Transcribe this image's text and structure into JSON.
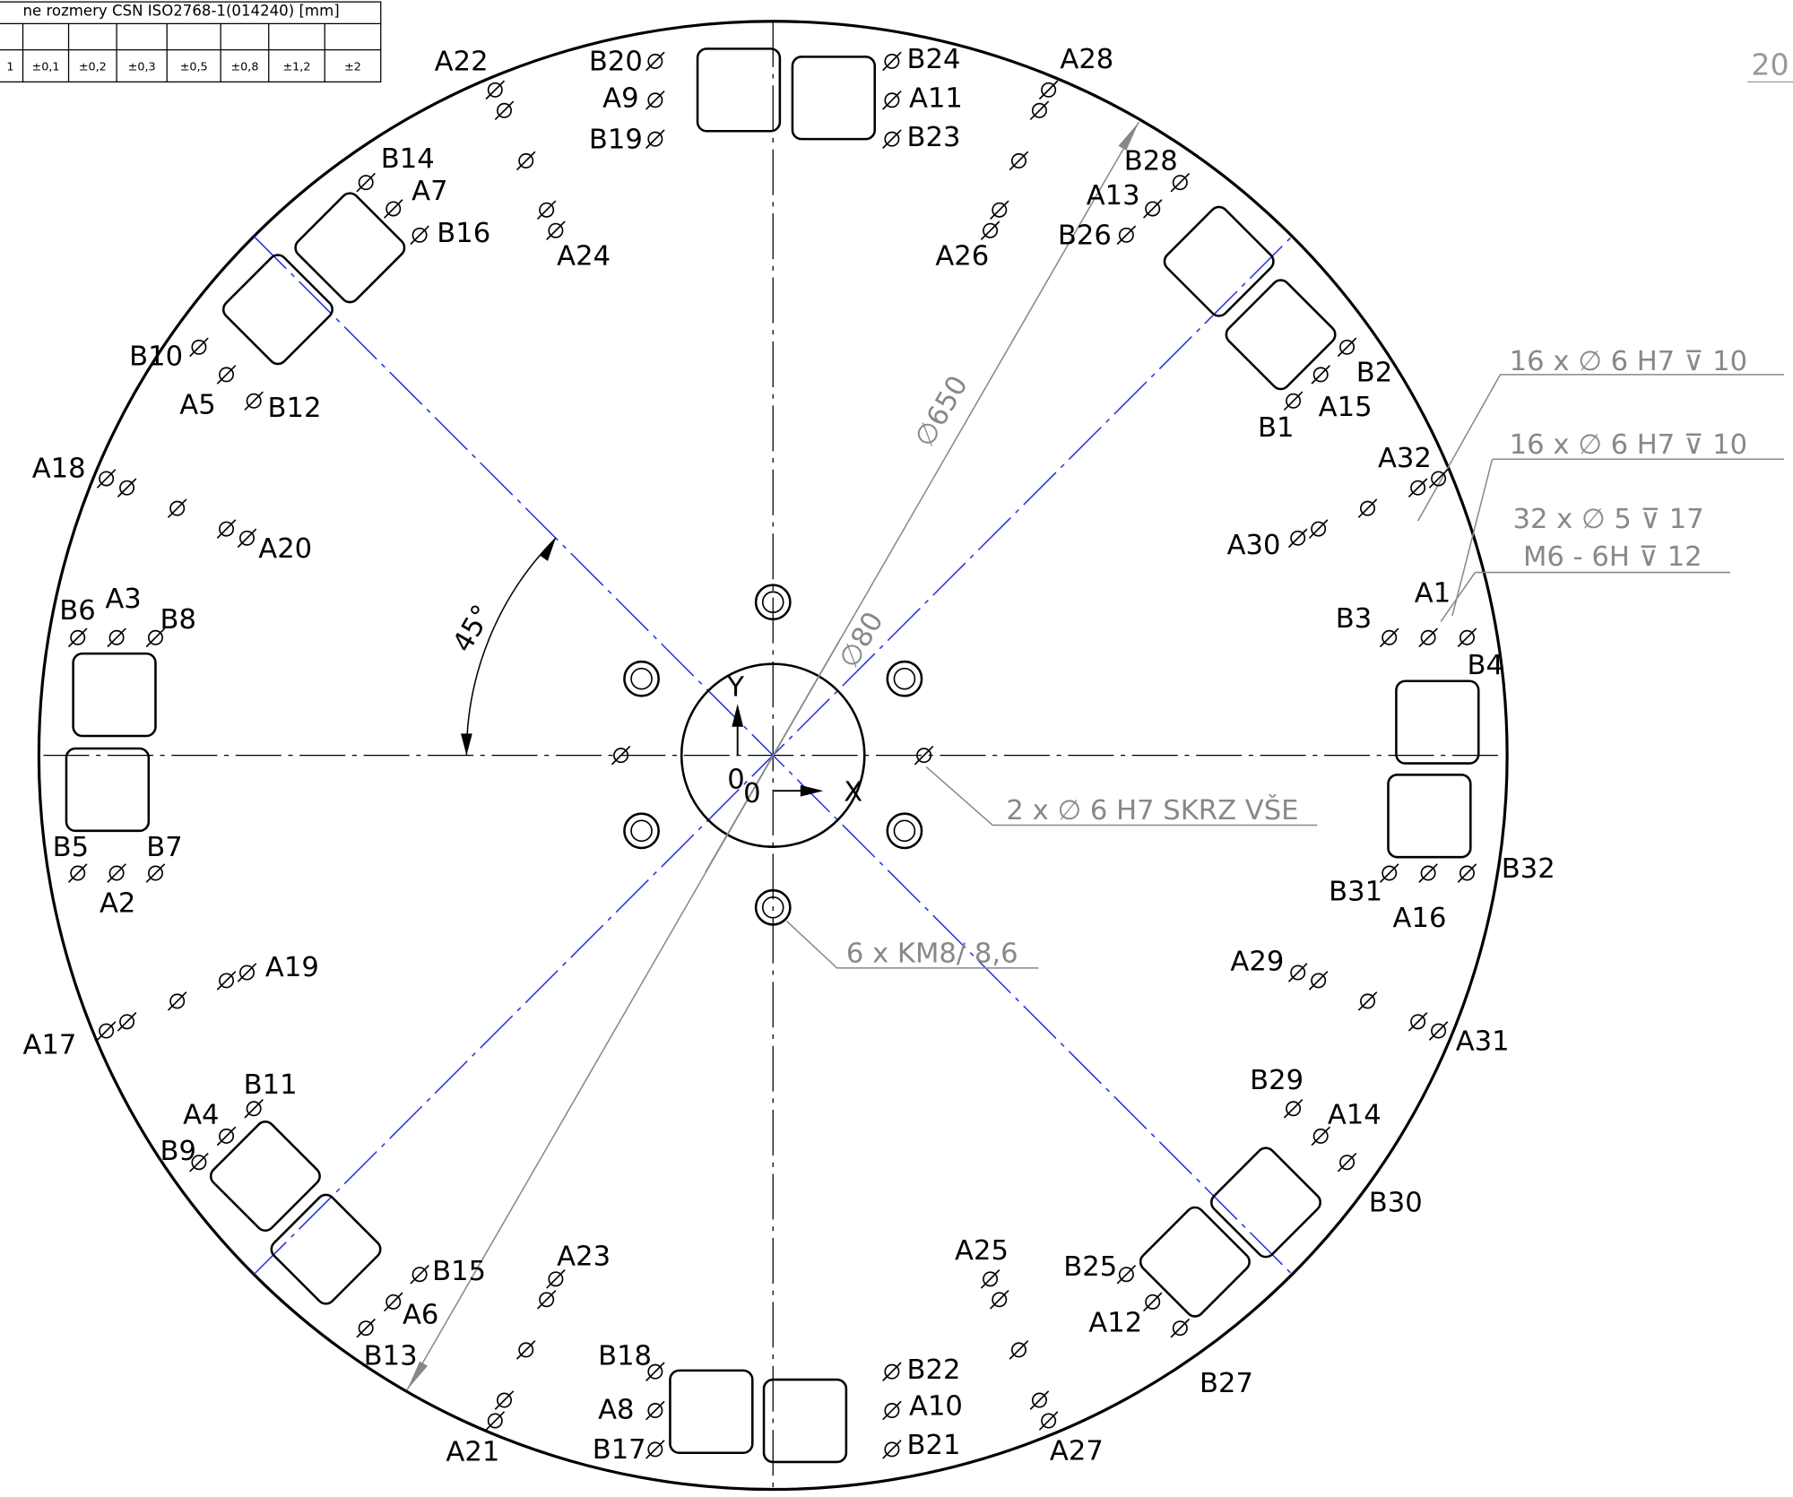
{
  "header": {
    "tolerance_title": "ne rozmery CSN ISO2768-1(014240) [mm]",
    "tolerances": [
      "1",
      "±0,1",
      "±0,2",
      "±0,3",
      "±0,5",
      "±0,8",
      "±1,2",
      "±2"
    ],
    "sheet_number": "20"
  },
  "holes": [
    "A22",
    "B20",
    "A9",
    "B19",
    "B24",
    "A11",
    "B23",
    "A28",
    "B14",
    "A7",
    "B16",
    "A24",
    "A26",
    "B28",
    "A13",
    "B26",
    "B10",
    "A5",
    "B12",
    "B2",
    "B1",
    "A15",
    "A18",
    "A20",
    "A32",
    "A30",
    "B6",
    "A3",
    "B8",
    "B3",
    "A1",
    "B4",
    "B5",
    "B7",
    "A2",
    "B31",
    "B32",
    "A16",
    "A19",
    "A29",
    "A17",
    "A31",
    "B11",
    "A4",
    "B9",
    "B29",
    "A14",
    "B30",
    "A23",
    "B15",
    "A6",
    "B13",
    "A25",
    "B25",
    "A12",
    "B27",
    "B18",
    "A8",
    "B17",
    "B22",
    "A10",
    "B21",
    "A21",
    "A27"
  ],
  "annotations": {
    "callout_1": "16 x ∅ 6  H7 ⊽ 10",
    "callout_2": "16 x ∅ 6  H7 ⊽ 10",
    "callout_3": "32 x ∅ 5 ⊽ 17",
    "callout_4": "M6 - 6H ⊽ 12",
    "through_holes": "2 x ∅ 6  H7 SKRZ VŠE",
    "counterbores": "6 x  KM8/ 8,6",
    "outer_diameter": "∅650",
    "inner_diameter": "∅80",
    "angle": "45°",
    "axis_y": "Y",
    "axis_x": "X",
    "origin_1": "0",
    "origin_2": "0"
  }
}
